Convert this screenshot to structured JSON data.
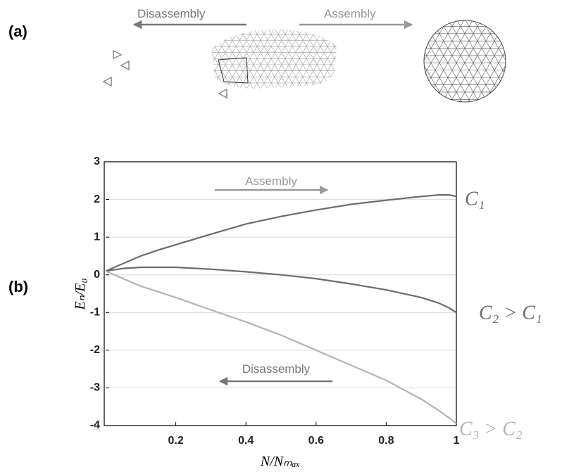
{
  "panel_a": {
    "label": "(a)",
    "left_arrow": "Disassembly",
    "right_arrow": "Assembly"
  },
  "chart_data": {
    "type": "line",
    "panel_label": "(b)",
    "xlabel": "N/Nₘₐₓ",
    "ylabel": "Eₙ/E₀",
    "x": [
      0,
      0.05,
      0.1,
      0.15,
      0.2,
      0.3,
      0.4,
      0.5,
      0.6,
      0.7,
      0.8,
      0.9,
      0.95,
      0.98,
      1
    ],
    "series": [
      {
        "name": "C₁",
        "color": "#6c6c6c",
        "values": [
          0.1,
          0.3,
          0.5,
          0.66,
          0.8,
          1.08,
          1.35,
          1.55,
          1.72,
          1.87,
          1.98,
          2.08,
          2.12,
          2.12,
          2.08
        ]
      },
      {
        "name": "C₂ > C₁",
        "color": "#6c6c6c",
        "values": [
          0.1,
          0.17,
          0.2,
          0.2,
          0.2,
          0.15,
          0.08,
          0.0,
          -0.1,
          -0.24,
          -0.4,
          -0.6,
          -0.75,
          -0.88,
          -1.0
        ]
      },
      {
        "name": "C₃ > C₂",
        "color": "#b4b4b4",
        "values": [
          0.1,
          -0.1,
          -0.3,
          -0.45,
          -0.6,
          -0.93,
          -1.25,
          -1.6,
          -2.0,
          -2.4,
          -2.8,
          -3.3,
          -3.6,
          -3.8,
          -3.95
        ]
      }
    ],
    "xlim": [
      0,
      1
    ],
    "ylim": [
      -4,
      3
    ],
    "xticks": [
      0.2,
      0.4,
      0.6,
      0.8,
      1
    ],
    "yticks": [
      -4,
      -3,
      -2,
      -1,
      0,
      1,
      2,
      3
    ],
    "grid": true,
    "annotations": [
      "Assembly",
      "Disassembly"
    ]
  }
}
